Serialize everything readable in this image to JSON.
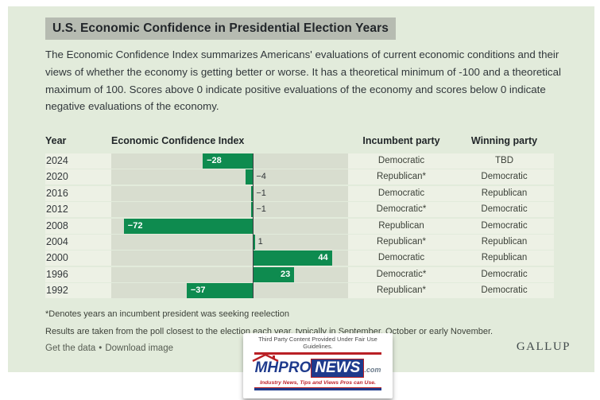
{
  "title": "U.S. Economic Confidence in Presidential Election Years",
  "description": "The Economic Confidence Index summarizes Americans' evaluations of current economic conditions and their views of whether the economy is getting better or worse. It has a theoretical minimum of -100 and a theoretical maximum of 100. Scores above 0 indicate positive evaluations of the economy and scores below 0 indicate negative evaluations of the economy.",
  "colors": {
    "panel_bg": "#e2ebdb",
    "row_band": "#edf1e5",
    "bar_track": "#d8ddcf",
    "bar_green": "#0e8b4f",
    "title_highlight": "#b6bbb1",
    "logo_blue": "#1e3a8c",
    "logo_red": "#b92025"
  },
  "table": {
    "headers": {
      "year": "Year",
      "index": "Economic Confidence Index",
      "incumbent": "Incumbent party",
      "winning": "Winning party"
    },
    "rows": [
      {
        "year": "2024",
        "value": -28,
        "label": "−28",
        "incumbent": "Democratic",
        "winning": "TBD"
      },
      {
        "year": "2020",
        "value": -4,
        "label": "−4",
        "incumbent": "Republican*",
        "winning": "Democratic"
      },
      {
        "year": "2016",
        "value": -1,
        "label": "−1",
        "incumbent": "Democratic",
        "winning": "Republican"
      },
      {
        "year": "2012",
        "value": -1,
        "label": "−1",
        "incumbent": "Democratic*",
        "winning": "Democratic"
      },
      {
        "year": "2008",
        "value": -72,
        "label": "−72",
        "incumbent": "Republican",
        "winning": "Democratic"
      },
      {
        "year": "2004",
        "value": 1,
        "label": "1",
        "incumbent": "Republican*",
        "winning": "Republican"
      },
      {
        "year": "2000",
        "value": 44,
        "label": "44",
        "incumbent": "Democratic",
        "winning": "Republican"
      },
      {
        "year": "1996",
        "value": 23,
        "label": "23",
        "incumbent": "Democratic*",
        "winning": "Democratic"
      },
      {
        "year": "1992",
        "value": -37,
        "label": "−37",
        "incumbent": "Republican*",
        "winning": "Democratic"
      }
    ]
  },
  "chart_data": {
    "type": "bar",
    "orientation": "horizontal",
    "title": "U.S. Economic Confidence in Presidential Election Years",
    "series_label": "Economic Confidence Index",
    "categories": [
      "2024",
      "2020",
      "2016",
      "2012",
      "2008",
      "2004",
      "2000",
      "1996",
      "1992"
    ],
    "values": [
      -28,
      -4,
      -1,
      -1,
      -72,
      1,
      44,
      23,
      -37
    ],
    "xlim": [
      -79,
      53
    ],
    "grid": false,
    "legend": false,
    "columns": {
      "incumbent_party": [
        "Democratic",
        "Republican*",
        "Democratic",
        "Democratic*",
        "Republican",
        "Republican*",
        "Democratic",
        "Democratic*",
        "Republican*"
      ],
      "winning_party": [
        "TBD",
        "Democratic",
        "Republican",
        "Democratic",
        "Democratic",
        "Republican",
        "Republican",
        "Democratic",
        "Democratic"
      ]
    }
  },
  "footnotes": {
    "fn1": "*Denotes years an incumbent president was seeking reelection",
    "fn2": "Results are taken from the poll closest to the election each year, typically in September, October or early November."
  },
  "links": {
    "get_data": "Get the data",
    "separator": "•",
    "download": "Download image"
  },
  "gallup_wordmark": "GALLUP",
  "third_party": {
    "note": "Third Party Content Provided Under Fair Use Guidelines.",
    "logo_mh": "MH",
    "logo_pro": "PRO",
    "logo_news": "NEWS",
    "logo_com": ".com",
    "tagline": "Industry News, Tips and Views Pros can Use."
  }
}
